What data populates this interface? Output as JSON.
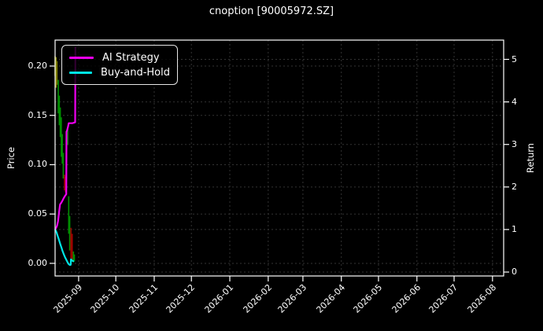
{
  "title": "cnoption [90005972.SZ]",
  "colors": {
    "background": "#000000",
    "text": "#ffffff",
    "grid": "#333333",
    "spine": "#ffffff",
    "legend_border": "#e6e6e6",
    "ai_strategy": "#f000f0",
    "buy_and_hold": "#00e5e5",
    "candle_up": "#008f00",
    "candle_down": "#a00000",
    "candle_mixed": "#7d7d00"
  },
  "chart_data": {
    "type": "line",
    "title": "cnoption [90005972.SZ]",
    "xlabel": "",
    "ylabel_left": "Price",
    "ylabel_right": "Return",
    "grid": "dashed-both-axes",
    "legend_position": "upper-left",
    "x_start_date": "2025-08-13",
    "x_range_days": [
      0,
      362
    ],
    "x_ticks": [
      {
        "label": "2025-09",
        "day": 19
      },
      {
        "label": "2025-10",
        "day": 49
      },
      {
        "label": "2025-11",
        "day": 80
      },
      {
        "label": "2025-12",
        "day": 110
      },
      {
        "label": "2026-01",
        "day": 141
      },
      {
        "label": "2026-02",
        "day": 172
      },
      {
        "label": "2026-03",
        "day": 200
      },
      {
        "label": "2026-04",
        "day": 231
      },
      {
        "label": "2026-05",
        "day": 261
      },
      {
        "label": "2026-06",
        "day": 292
      },
      {
        "label": "2026-07",
        "day": 322
      },
      {
        "label": "2026-08",
        "day": 353
      }
    ],
    "left_range": [
      -0.0128,
      0.2263
    ],
    "left_ticks": [
      {
        "label": "0.00",
        "value": 0.0
      },
      {
        "label": "0.05",
        "value": 0.05
      },
      {
        "label": "0.10",
        "value": 0.1
      },
      {
        "label": "0.15",
        "value": 0.15
      },
      {
        "label": "0.20",
        "value": 0.2
      }
    ],
    "right_range": [
      -0.092,
      5.453
    ],
    "right_ticks": [
      {
        "label": "0",
        "value": 0
      },
      {
        "label": "1",
        "value": 1
      },
      {
        "label": "2",
        "value": 2
      },
      {
        "label": "3",
        "value": 3
      },
      {
        "label": "4",
        "value": 4
      },
      {
        "label": "5",
        "value": 5
      }
    ],
    "series": [
      {
        "name": "AI Strategy",
        "axis": "right",
        "color": "#f000f0",
        "points": [
          [
            0,
            1.0
          ],
          [
            0.8,
            1.04
          ],
          [
            1.6,
            1.09
          ],
          [
            2.4,
            1.2
          ],
          [
            3.2,
            1.4
          ],
          [
            4,
            1.59
          ],
          [
            5,
            1.63
          ],
          [
            6,
            1.68
          ],
          [
            7,
            1.74
          ],
          [
            8,
            1.79
          ],
          [
            9,
            1.83
          ],
          [
            9.2,
            3.3
          ],
          [
            9.6,
            3.32
          ],
          [
            10.5,
            3.42
          ],
          [
            11,
            3.5
          ],
          [
            14,
            3.5
          ],
          [
            16.2,
            3.52
          ],
          [
            16.4,
            5.28
          ],
          [
            17,
            5.28
          ]
        ]
      },
      {
        "name": "Buy-and-Hold",
        "axis": "right",
        "color": "#00e5e5",
        "points": [
          [
            0,
            1.0
          ],
          [
            0.6,
            0.97
          ],
          [
            1.2,
            0.93
          ],
          [
            2,
            0.86
          ],
          [
            2.8,
            0.79
          ],
          [
            3.6,
            0.71
          ],
          [
            4.4,
            0.64
          ],
          [
            5.2,
            0.57
          ],
          [
            6,
            0.5
          ],
          [
            7,
            0.42
          ],
          [
            8,
            0.35
          ],
          [
            9,
            0.29
          ],
          [
            10,
            0.235
          ],
          [
            11,
            0.185
          ],
          [
            12,
            0.165
          ],
          [
            12.6,
            0.17
          ],
          [
            12.8,
            0.3
          ],
          [
            13.6,
            0.27
          ],
          [
            14.6,
            0.255
          ],
          [
            15.2,
            0.27
          ]
        ]
      }
    ],
    "candlesticks": {
      "axis": "left",
      "bars": [
        {
          "day": 0,
          "high": 0.21,
          "low": 0.19,
          "color": "#7d7d00"
        },
        {
          "day": 0.8,
          "high": 0.209,
          "low": 0.178,
          "color": "#8a8a00"
        },
        {
          "day": 1.6,
          "high": 0.205,
          "low": 0.181,
          "color": "#6f6f00"
        },
        {
          "day": 2.6,
          "high": 0.186,
          "low": 0.152,
          "color": "#008f00"
        },
        {
          "day": 3.4,
          "high": 0.17,
          "low": 0.14,
          "color": "#008f00"
        },
        {
          "day": 4.2,
          "high": 0.158,
          "low": 0.128,
          "color": "#008f00"
        },
        {
          "day": 5.0,
          "high": 0.148,
          "low": 0.108,
          "color": "#008f00"
        },
        {
          "day": 5.8,
          "high": 0.131,
          "low": 0.101,
          "color": "#008f00"
        },
        {
          "day": 6.6,
          "high": 0.112,
          "low": 0.086,
          "color": "#008f00"
        },
        {
          "day": 7.6,
          "high": 0.09,
          "low": 0.074,
          "color": "#a00000"
        },
        {
          "day": 8.4,
          "high": 0.088,
          "low": 0.072,
          "color": "#a00000"
        },
        {
          "day": 10.2,
          "high": 0.139,
          "low": 0.12,
          "color": "#008f00"
        },
        {
          "day": 11.0,
          "high": 0.068,
          "low": 0.03,
          "color": "#008f00"
        },
        {
          "day": 11.8,
          "high": 0.048,
          "low": 0.013,
          "color": "#008f00"
        },
        {
          "day": 12.8,
          "high": 0.036,
          "low": 0.005,
          "color": "#a00000"
        },
        {
          "day": 13.8,
          "high": 0.03,
          "low": 0.004,
          "color": "#a00000"
        },
        {
          "day": 14.8,
          "high": 0.012,
          "low": 0.001,
          "color": "#008f00"
        },
        {
          "day": 15.6,
          "high": 0.009,
          "low": 0.002,
          "color": "#008f00"
        }
      ]
    }
  }
}
